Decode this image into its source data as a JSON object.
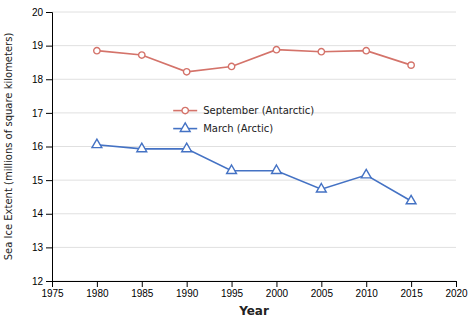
{
  "chart_data": {
    "type": "line",
    "x": [
      1980,
      1985,
      1990,
      1995,
      2000,
      2005,
      2010,
      2015
    ],
    "series": [
      {
        "name": "September (Antarctic)",
        "color": "#d4736a",
        "marker": "circle",
        "values": [
          18.85,
          18.72,
          18.22,
          18.38,
          18.88,
          18.82,
          18.85,
          18.42
        ]
      },
      {
        "name": "March (Arctic)",
        "color": "#4472c4",
        "marker": "triangle",
        "values": [
          16.05,
          15.93,
          15.93,
          15.28,
          15.28,
          14.73,
          15.15,
          14.38
        ]
      }
    ],
    "xlabel": "Year",
    "ylabel": "Sea Ice Extent (millions of square kilometers)",
    "xlim": [
      1975,
      2020
    ],
    "ylim": [
      12,
      20
    ],
    "xticks": [
      1975,
      1980,
      1985,
      1990,
      1995,
      2000,
      2005,
      2010,
      2015,
      2020
    ],
    "yticks": [
      12,
      13,
      14,
      15,
      16,
      17,
      18,
      19,
      20
    ],
    "grid": "y",
    "legend": "center"
  }
}
